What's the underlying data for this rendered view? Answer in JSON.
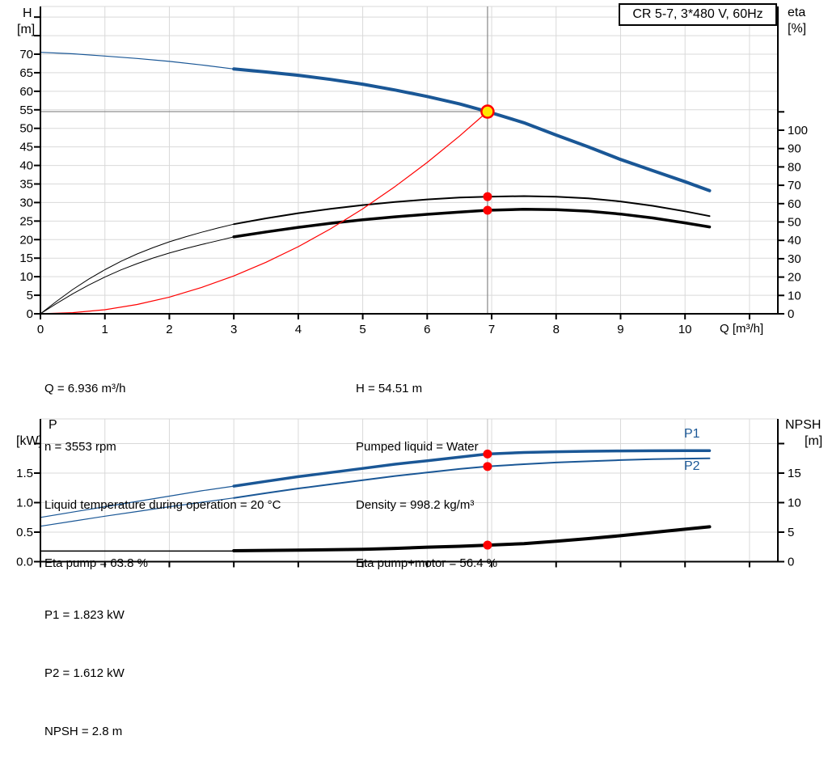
{
  "title_box": {
    "label": "CR 5-7, 3*480 V, 60Hz"
  },
  "colors": {
    "blue": "#1a5796",
    "black": "#000000",
    "red": "#ff0000",
    "yellow": "#ffe600",
    "grid": "#d9d9d9",
    "crosshair": "#8f8f8f",
    "op_line": "#c8c8c8",
    "axis": "#000000"
  },
  "top_chart": {
    "h_axis": {
      "title_lines": [
        "H",
        "[m]"
      ],
      "ticks": [
        {
          "v": 0,
          "l": "0"
        },
        {
          "v": 5,
          "l": "5"
        },
        {
          "v": 10,
          "l": "10"
        },
        {
          "v": 15,
          "l": "15"
        },
        {
          "v": 20,
          "l": "20"
        },
        {
          "v": 25,
          "l": "25"
        },
        {
          "v": 30,
          "l": "30"
        },
        {
          "v": 35,
          "l": "35"
        },
        {
          "v": 40,
          "l": "40"
        },
        {
          "v": 45,
          "l": "45"
        },
        {
          "v": 50,
          "l": "50"
        },
        {
          "v": 55,
          "l": "55"
        },
        {
          "v": 60,
          "l": "60"
        },
        {
          "v": 65,
          "l": "65"
        },
        {
          "v": 70,
          "l": "70"
        }
      ],
      "unlabeled": [
        75,
        80
      ]
    },
    "eta_axis": {
      "title_lines": [
        "eta",
        "[%]"
      ],
      "ticks": [
        {
          "v": 0,
          "l": "0"
        },
        {
          "v": 10,
          "l": "10"
        },
        {
          "v": 20,
          "l": "20"
        },
        {
          "v": 30,
          "l": "30"
        },
        {
          "v": 40,
          "l": "40"
        },
        {
          "v": 50,
          "l": "50"
        },
        {
          "v": 60,
          "l": "60"
        },
        {
          "v": 70,
          "l": "70"
        },
        {
          "v": 80,
          "l": "80"
        },
        {
          "v": 90,
          "l": "90"
        },
        {
          "v": 100,
          "l": "100"
        }
      ],
      "unlabeled": [
        110
      ]
    },
    "q_axis": {
      "title": "Q [m³/h]",
      "ticks": [
        {
          "v": 0,
          "l": "0"
        },
        {
          "v": 1,
          "l": "1"
        },
        {
          "v": 2,
          "l": "2"
        },
        {
          "v": 3,
          "l": "3"
        },
        {
          "v": 4,
          "l": "4"
        },
        {
          "v": 5,
          "l": "5"
        },
        {
          "v": 6,
          "l": "6"
        },
        {
          "v": 7,
          "l": "7"
        },
        {
          "v": 8,
          "l": "8"
        },
        {
          "v": 9,
          "l": "9"
        },
        {
          "v": 10,
          "l": "10"
        }
      ],
      "unlabeled": [
        11
      ]
    }
  },
  "bottom_chart": {
    "p_axis": {
      "title_lines": [
        "P",
        "[kW]"
      ],
      "ticks": [
        {
          "v": 0,
          "l": "0.0"
        },
        {
          "v": 0.5,
          "l": "0.5"
        },
        {
          "v": 1,
          "l": "1.0"
        },
        {
          "v": 1.5,
          "l": "1.5"
        }
      ],
      "unlabeled": [
        2
      ]
    },
    "npsh_axis": {
      "title_lines": [
        "NPSH",
        "[m]"
      ],
      "ticks": [
        {
          "v": 0,
          "l": "0"
        },
        {
          "v": 5,
          "l": "5"
        },
        {
          "v": 10,
          "l": "10"
        },
        {
          "v": 15,
          "l": "15"
        }
      ],
      "unlabeled": [
        20
      ]
    },
    "q_axis": {
      "ticks": [],
      "unlabeled": [
        0,
        1,
        2,
        3,
        4,
        5,
        6,
        7,
        8,
        9,
        10,
        11
      ]
    },
    "p1_label": "P1",
    "p2_label": "P2"
  },
  "info_top_left": [
    "Q = 6.936 m³/h",
    "n = 3553 rpm",
    "Liquid temperature during operation = 20 °C",
    "Eta pump = 63.8 %"
  ],
  "info_top_right": [
    "H = 54.51 m",
    "Pumped liquid = Water",
    "Density = 998.2 kg/m³",
    "Eta pump+motor = 56.4 %"
  ],
  "info_bottom": [
    "P1 = 1.823 kW",
    "P2 = 1.612 kW",
    "NPSH = 2.8 m"
  ],
  "chart_data": [
    {
      "type": "line",
      "title": "CR 5-7, 3*480 V, 60Hz",
      "xlabel": "Q [m³/h]",
      "ylabel": "H [m]",
      "y2label": "eta [%]",
      "xlim": [
        0,
        11.44
      ],
      "ylim": [
        0,
        82.9
      ],
      "y2lim": [
        0,
        167.4
      ],
      "duty_point": {
        "q": 6.936,
        "H": 54.51
      },
      "series": [
        {
          "name": "pump-curve-thin",
          "axis": "H",
          "color": "blue",
          "width": 1.2,
          "points": [
            [
              0,
              70.5
            ],
            [
              0.5,
              70.1
            ],
            [
              1,
              69.5
            ],
            [
              1.5,
              68.85
            ],
            [
              2,
              68.05
            ],
            [
              2.5,
              67.1
            ],
            [
              3,
              66.0
            ]
          ]
        },
        {
          "name": "pump-curve",
          "axis": "H",
          "color": "blue",
          "width": 4,
          "points": [
            [
              3,
              66.0
            ],
            [
              3.5,
              65.2
            ],
            [
              4,
              64.3
            ],
            [
              4.5,
              63.2
            ],
            [
              5,
              61.9
            ],
            [
              5.5,
              60.35
            ],
            [
              6,
              58.6
            ],
            [
              6.5,
              56.6
            ],
            [
              6.936,
              54.51
            ],
            [
              7.5,
              51.5
            ],
            [
              8,
              48.2
            ],
            [
              8.5,
              45.0
            ],
            [
              9,
              41.6
            ],
            [
              9.5,
              38.6
            ],
            [
              10,
              35.6
            ],
            [
              10.38,
              33.2
            ]
          ]
        },
        {
          "name": "eta-pump-thin",
          "axis": "eta",
          "color": "black",
          "width": 1,
          "points": [
            [
              0,
              0
            ],
            [
              0.25,
              6.8
            ],
            [
              0.5,
              13.2
            ],
            [
              0.75,
              18.9
            ],
            [
              1,
              24.0
            ],
            [
              1.25,
              28.6
            ],
            [
              1.5,
              32.6
            ],
            [
              1.75,
              36.1
            ],
            [
              2,
              39.2
            ],
            [
              2.25,
              41.9
            ],
            [
              2.5,
              44.4
            ],
            [
              2.75,
              46.7
            ],
            [
              3,
              48.8
            ]
          ]
        },
        {
          "name": "eta-pump",
          "axis": "eta",
          "color": "black",
          "width": 2,
          "points": [
            [
              3,
              48.8
            ],
            [
              3.5,
              52.0
            ],
            [
              4,
              54.8
            ],
            [
              4.5,
              57.2
            ],
            [
              5,
              59.2
            ],
            [
              5.5,
              60.9
            ],
            [
              6,
              62.3
            ],
            [
              6.5,
              63.3
            ],
            [
              6.936,
              63.8
            ],
            [
              7.5,
              64.1
            ],
            [
              8,
              63.8
            ],
            [
              8.5,
              62.9
            ],
            [
              9,
              61.2
            ],
            [
              9.5,
              58.8
            ],
            [
              10,
              55.8
            ],
            [
              10.38,
              53.2
            ]
          ]
        },
        {
          "name": "eta-pump-motor-thin",
          "axis": "eta",
          "color": "black",
          "width": 1,
          "points": [
            [
              0,
              0
            ],
            [
              0.25,
              5.6
            ],
            [
              0.5,
              10.9
            ],
            [
              0.75,
              15.7
            ],
            [
              1,
              20.0
            ],
            [
              1.25,
              23.9
            ],
            [
              1.5,
              27.3
            ],
            [
              1.75,
              30.4
            ],
            [
              2,
              33.1
            ],
            [
              2.25,
              35.5
            ],
            [
              2.5,
              37.7
            ],
            [
              2.75,
              39.8
            ],
            [
              3,
              41.9
            ]
          ]
        },
        {
          "name": "eta-pump-motor",
          "axis": "eta",
          "color": "black",
          "width": 3.5,
          "points": [
            [
              3,
              41.9
            ],
            [
              3.5,
              44.6
            ],
            [
              4,
              47.1
            ],
            [
              4.5,
              49.3
            ],
            [
              5,
              51.2
            ],
            [
              5.5,
              52.8
            ],
            [
              6,
              54.2
            ],
            [
              6.5,
              55.4
            ],
            [
              6.936,
              56.4
            ],
            [
              7.5,
              56.9
            ],
            [
              8,
              56.7
            ],
            [
              8.5,
              55.9
            ],
            [
              9,
              54.3
            ],
            [
              9.5,
              52.2
            ],
            [
              10,
              49.5
            ],
            [
              10.38,
              47.3
            ]
          ]
        },
        {
          "name": "system-curve",
          "axis": "H",
          "color": "red",
          "width": 1.2,
          "points": [
            [
              0,
              0
            ],
            [
              0.5,
              0.3
            ],
            [
              1,
              1.1
            ],
            [
              1.5,
              2.5
            ],
            [
              2,
              4.5
            ],
            [
              2.5,
              7.1
            ],
            [
              3,
              10.2
            ],
            [
              3.5,
              13.9
            ],
            [
              4,
              18.1
            ],
            [
              4.5,
              22.9
            ],
            [
              5,
              28.3
            ],
            [
              5.5,
              34.3
            ],
            [
              6,
              40.8
            ],
            [
              6.5,
              47.9
            ],
            [
              6.936,
              54.51
            ]
          ]
        }
      ],
      "markers": [
        {
          "name": "eta-pump-point",
          "kind": "dot",
          "axis": "eta",
          "q": 6.936,
          "v": 63.8
        },
        {
          "name": "eta-pump-motor-point",
          "kind": "dot",
          "axis": "eta",
          "q": 6.936,
          "v": 56.4
        },
        {
          "name": "duty-point",
          "kind": "duty",
          "axis": "H",
          "q": 6.936,
          "v": 54.51
        }
      ]
    },
    {
      "type": "line",
      "title": "",
      "xlabel": "Q [m³/h]",
      "ylabel": "P [kW]",
      "y2label": "NPSH [m]",
      "xlim": [
        0,
        11.44
      ],
      "ylim": [
        0,
        2.42
      ],
      "y2lim": [
        0,
        24.2
      ],
      "duty_q": 6.936,
      "series": [
        {
          "name": "p1-curve-thin",
          "axis": "P",
          "color": "blue",
          "width": 1.2,
          "points": [
            [
              0,
              0.75
            ],
            [
              0.5,
              0.84
            ],
            [
              1,
              0.93
            ],
            [
              1.5,
              1.02
            ],
            [
              2,
              1.11
            ],
            [
              2.5,
              1.2
            ],
            [
              3,
              1.28
            ]
          ]
        },
        {
          "name": "p1-curve",
          "axis": "P",
          "color": "blue",
          "width": 3.5,
          "points": [
            [
              3,
              1.28
            ],
            [
              3.5,
              1.36
            ],
            [
              4,
              1.44
            ],
            [
              4.5,
              1.51
            ],
            [
              5,
              1.58
            ],
            [
              5.5,
              1.65
            ],
            [
              6,
              1.71
            ],
            [
              6.5,
              1.77
            ],
            [
              6.936,
              1.823
            ],
            [
              7.5,
              1.85
            ],
            [
              8,
              1.862
            ],
            [
              8.5,
              1.87
            ],
            [
              9,
              1.875
            ],
            [
              9.5,
              1.878
            ],
            [
              10,
              1.88
            ],
            [
              10.38,
              1.88
            ]
          ]
        },
        {
          "name": "p2-curve-thin",
          "axis": "P",
          "color": "blue",
          "width": 1.2,
          "points": [
            [
              0,
              0.6
            ],
            [
              0.5,
              0.685
            ],
            [
              1,
              0.77
            ],
            [
              1.5,
              0.85
            ],
            [
              2,
              0.93
            ],
            [
              2.5,
              1.005
            ],
            [
              3,
              1.08
            ]
          ]
        },
        {
          "name": "p2-curve",
          "axis": "P",
          "color": "blue",
          "width": 2,
          "points": [
            [
              3,
              1.08
            ],
            [
              3.5,
              1.16
            ],
            [
              4,
              1.24
            ],
            [
              4.5,
              1.31
            ],
            [
              5,
              1.38
            ],
            [
              5.5,
              1.45
            ],
            [
              6,
              1.51
            ],
            [
              6.5,
              1.57
            ],
            [
              6.936,
              1.612
            ],
            [
              7.5,
              1.65
            ],
            [
              8,
              1.68
            ],
            [
              8.5,
              1.7
            ],
            [
              9,
              1.72
            ],
            [
              9.5,
              1.735
            ],
            [
              10,
              1.745
            ],
            [
              10.38,
              1.75
            ]
          ]
        },
        {
          "name": "npsh-curve-thin",
          "axis": "NPSH",
          "color": "black",
          "width": 1.5,
          "points": [
            [
              0,
              1.8
            ],
            [
              3,
              1.8
            ]
          ]
        },
        {
          "name": "npsh-curve",
          "axis": "NPSH",
          "color": "black",
          "width": 4,
          "points": [
            [
              3,
              1.85
            ],
            [
              4,
              1.95
            ],
            [
              5,
              2.1
            ],
            [
              5.5,
              2.25
            ],
            [
              6,
              2.45
            ],
            [
              6.5,
              2.6
            ],
            [
              6.936,
              2.8
            ],
            [
              7.5,
              3.05
            ],
            [
              8,
              3.45
            ],
            [
              8.5,
              3.9
            ],
            [
              9,
              4.4
            ],
            [
              9.5,
              4.95
            ],
            [
              10,
              5.5
            ],
            [
              10.38,
              5.9
            ]
          ]
        }
      ],
      "markers": [
        {
          "name": "p1-point",
          "kind": "dot",
          "axis": "P",
          "q": 6.936,
          "v": 1.823
        },
        {
          "name": "p2-point",
          "kind": "dot",
          "axis": "P",
          "q": 6.936,
          "v": 1.612
        },
        {
          "name": "npsh-point",
          "kind": "dot",
          "axis": "NPSH",
          "q": 6.936,
          "v": 2.8
        }
      ]
    }
  ]
}
